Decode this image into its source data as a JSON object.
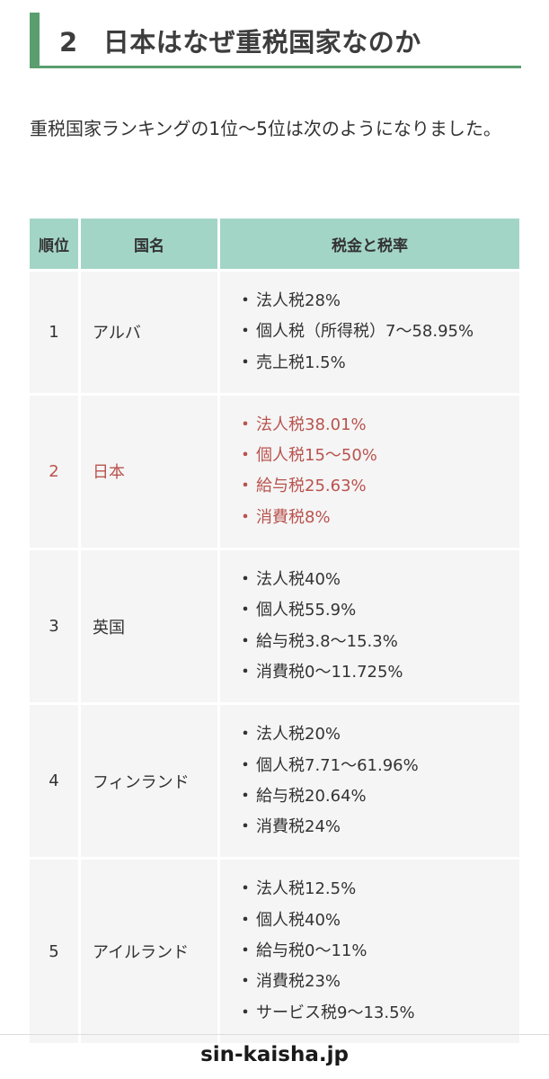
{
  "heading": {
    "number": "2",
    "title": "日本はなぜ重税国家なのか"
  },
  "intro": "重税国家ランキングの1位〜5位は次のようになりました。",
  "table": {
    "headers": [
      "順位",
      "国名",
      "税金と税率"
    ],
    "rows": [
      {
        "rank": "1",
        "country": "アルバ",
        "highlight": false,
        "taxes": [
          "法人税28%",
          "個人税（所得税）7〜58.95%",
          "売上税1.5%"
        ]
      },
      {
        "rank": "2",
        "country": "日本",
        "highlight": true,
        "taxes": [
          "法人税38.01%",
          "個人税15〜50%",
          "給与税25.63%",
          "消費税8%"
        ]
      },
      {
        "rank": "3",
        "country": "英国",
        "highlight": false,
        "taxes": [
          "法人税40%",
          "個人税55.9%",
          "給与税3.8〜15.3%",
          "消費税0〜11.725%"
        ]
      },
      {
        "rank": "4",
        "country": "フィンランド",
        "highlight": false,
        "taxes": [
          "法人税20%",
          "個人税7.71〜61.96%",
          "給与税20.64%",
          "消費税24%"
        ]
      },
      {
        "rank": "5",
        "country": "アイルランド",
        "highlight": false,
        "taxes": [
          "法人税12.5%",
          "個人税40%",
          "給与税0〜11%",
          "消費税23%",
          "サービス税9〜13.5%"
        ]
      }
    ],
    "bullet": "・"
  },
  "footer": {
    "source": "sin-kaisha.jp"
  },
  "colors": {
    "accent_green": "#5a9e6f",
    "header_bg": "#a3d5c7",
    "highlight_red": "#b9534e"
  }
}
